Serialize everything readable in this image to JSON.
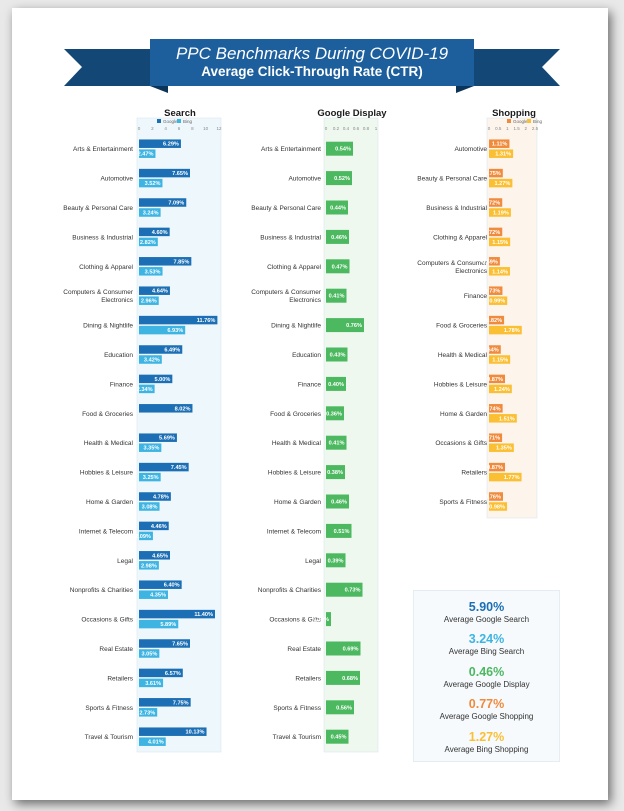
{
  "header": {
    "title": "PPC Benchmarks During COVID-19",
    "subtitle": "Average Click-Through Rate (CTR)"
  },
  "colors": {
    "banner": "#1c5f9c",
    "banner_dark": "#134776",
    "google_search": "#1c6fb4",
    "bing_search": "#3eb4e2",
    "display": "#4cb860",
    "shopping_google": "#f08a3c",
    "shopping_bing": "#fbbf33",
    "search_panel": "#eef7fc",
    "display_panel": "#eef8ef",
    "shopping_panel": "#fdf4ec"
  },
  "chart_data": [
    {
      "type": "bar",
      "orientation": "horizontal",
      "title": "Search",
      "legend": [
        "Google",
        "Bing"
      ],
      "legend_position": "top",
      "xlim": [
        0,
        12
      ],
      "ticks": [
        "0",
        "2",
        "4",
        "6",
        "8",
        "10",
        "12"
      ],
      "categories": [
        "Arts & Entertainment",
        "Automotive",
        "Beauty & Personal Care",
        "Business & Industrial",
        "Clothing & Apparel",
        "Computers & Consumer Electronics",
        "Dining & Nightlife",
        "Education",
        "Finance",
        "Food & Groceries",
        "Health & Medical",
        "Hobbies & Leisure",
        "Home & Garden",
        "Internet & Telecom",
        "Legal",
        "Nonprofits & Charities",
        "Occasions & Gifts",
        "Real Estate",
        "Retailers",
        "Sports & Fitness",
        "Travel & Tourism"
      ],
      "series": [
        {
          "name": "Google",
          "values": [
            6.29,
            7.65,
            7.09,
            4.6,
            7.85,
            4.64,
            11.76,
            6.49,
            5.0,
            8.02,
            5.69,
            7.45,
            4.78,
            4.46,
            4.65,
            6.4,
            11.4,
            7.65,
            6.57,
            7.75,
            10.13
          ],
          "labels": [
            "6.29%",
            "7.65%",
            "7.09%",
            "4.60%",
            "7.85%",
            "4.64%",
            "11.76%",
            "6.49%",
            "5.00%",
            "8.02%",
            "5.69%",
            "7.45%",
            "4.78%",
            "4.46%",
            "4.65%",
            "6.40%",
            "11.40%",
            "7.65%",
            "6.57%",
            "7.75%",
            "10.13%"
          ]
        },
        {
          "name": "Bing",
          "values": [
            2.47,
            3.52,
            3.24,
            2.82,
            3.53,
            2.96,
            6.93,
            3.42,
            2.34,
            null,
            3.35,
            3.25,
            3.08,
            2.09,
            2.98,
            4.35,
            5.89,
            3.05,
            3.61,
            2.73,
            4.01
          ],
          "labels": [
            "2.47%",
            "3.52%",
            "3.24%",
            "2.82%",
            "3.53%",
            "2.96%",
            "6.93%",
            "3.42%",
            "2.34%",
            "",
            "3.35%",
            "3.25%",
            "3.08%",
            "2.09%",
            "2.98%",
            "4.35%",
            "5.89%",
            "3.05%",
            "3.61%",
            "2.73%",
            "4.01%"
          ]
        }
      ]
    },
    {
      "type": "bar",
      "orientation": "horizontal",
      "title": "Google Display",
      "xlim": [
        0,
        1.0
      ],
      "ticks": [
        "0",
        "0.2",
        "0.4",
        "0.6",
        "0.8",
        "1"
      ],
      "categories": [
        "Arts & Entertainment",
        "Automotive",
        "Beauty & Personal Care",
        "Business & Industrial",
        "Clothing & Apparel",
        "Computers & Consumer Electronics",
        "Dining & Nightlife",
        "Education",
        "Finance",
        "Food & Groceries",
        "Health & Medical",
        "Hobbies & Leisure",
        "Home & Garden",
        "Internet & Telecom",
        "Legal",
        "Nonprofits & Charities",
        "Occasions & Gifts",
        "Real Estate",
        "Retailers",
        "Sports & Fitness",
        "Travel & Tourism"
      ],
      "series": [
        {
          "values": [
            0.54,
            0.52,
            0.44,
            0.46,
            0.47,
            0.41,
            0.76,
            0.43,
            0.4,
            0.36,
            0.41,
            0.38,
            0.46,
            0.51,
            0.39,
            0.73,
            0.1,
            0.69,
            0.68,
            0.56,
            0.45
          ],
          "labels": [
            "0.54%",
            "0.52%",
            "0.44%",
            "0.46%",
            "0.47%",
            "0.41%",
            "0.76%",
            "0.43%",
            "0.40%",
            "0.36%",
            "0.41%",
            "0.38%",
            "0.46%",
            "0.51%",
            "0.39%",
            "0.73%",
            "0.10%",
            "0.69%",
            "0.68%",
            "0.56%",
            "0.45%"
          ]
        }
      ]
    },
    {
      "type": "bar",
      "orientation": "horizontal",
      "title": "Shopping",
      "legend": [
        "Google",
        "Bing"
      ],
      "legend_position": "top",
      "xlim": [
        0,
        2.5
      ],
      "ticks": [
        "0",
        "0.5",
        "1",
        "1.5",
        "2",
        "2.5"
      ],
      "categories": [
        "Automotive",
        "Beauty & Personal Care",
        "Business & Industrial",
        "Clothing & Apparel",
        "Computers & Consumer Electronics",
        "Finance",
        "Food & Groceries",
        "Health & Medical",
        "Hobbies & Leisure",
        "Home & Garden",
        "Occasions & Gifts",
        "Retailers",
        "Sports & Fitness"
      ],
      "series": [
        {
          "name": "Google",
          "values": [
            1.11,
            0.75,
            0.72,
            0.72,
            0.59,
            0.73,
            0.82,
            0.64,
            0.87,
            0.74,
            0.71,
            0.87,
            0.76
          ],
          "labels": [
            "1.11%",
            "0.75%",
            "0.72%",
            "0.72%",
            "0.59%",
            "0.73%",
            "0.82%",
            "0.64%",
            "0.87%",
            "0.74%",
            "0.71%",
            "0.87%",
            "0.76%"
          ]
        },
        {
          "name": "Bing",
          "values": [
            1.31,
            1.27,
            1.19,
            1.15,
            1.14,
            0.99,
            1.78,
            1.15,
            1.24,
            1.51,
            1.35,
            1.77,
            0.98
          ],
          "labels": [
            "1.31%",
            "1.27%",
            "1.19%",
            "1.15%",
            "1.14%",
            "0.99%",
            "1.78%",
            "1.15%",
            "1.24%",
            "1.51%",
            "1.35%",
            "1.77%",
            "0.98%"
          ]
        }
      ]
    }
  ],
  "summary": [
    {
      "value": "5.90%",
      "label": "Average Google Search",
      "color": "#1c6fb4"
    },
    {
      "value": "3.24%",
      "label": "Average Bing Search",
      "color": "#3eb4e2"
    },
    {
      "value": "0.46%",
      "label": "Average Google Display",
      "color": "#4cb860"
    },
    {
      "value": "0.77%",
      "label": "Average Google Shopping",
      "color": "#f08a3c"
    },
    {
      "value": "1.27%",
      "label": "Average Bing Shopping",
      "color": "#fbbf33"
    }
  ]
}
